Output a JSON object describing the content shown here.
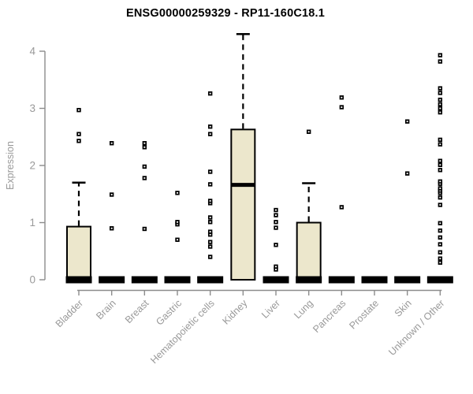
{
  "chart_data": {
    "type": "boxplot",
    "title": "ENSG00000259329 - RP11-160C18.1",
    "ylabel": "Expression",
    "xlabel": "",
    "yticks": [
      0,
      1,
      2,
      3,
      4
    ],
    "ylim": [
      0,
      4.35
    ],
    "grid": false,
    "legend": "none",
    "x_label_rotation_deg": 45,
    "colors": {
      "box_fill": "#ECE7CC",
      "box_stroke": "#000000",
      "median": "#000000",
      "outlier": "#000000",
      "axis_line": "#8C8C8C",
      "tick_text": "#999999",
      "title_text": "#000000",
      "background": "#FFFFFF"
    },
    "categories": [
      {
        "label": "Bladder",
        "box": {
          "low": 0,
          "q1": 0,
          "median": 0,
          "q3": 0.93,
          "high": 1.7
        },
        "outliers": [
          2.43,
          2.55,
          2.97
        ]
      },
      {
        "label": "Brain",
        "box": {
          "low": 0,
          "q1": 0,
          "median": 0,
          "q3": 0,
          "high": 0
        },
        "outliers": [
          0.9,
          1.49,
          2.39
        ]
      },
      {
        "label": "Breast",
        "box": {
          "low": 0,
          "q1": 0,
          "median": 0,
          "q3": 0,
          "high": 0
        },
        "outliers": [
          0.89,
          1.78,
          1.98,
          2.32,
          2.39
        ]
      },
      {
        "label": "Gastric",
        "box": {
          "low": 0,
          "q1": 0,
          "median": 0,
          "q3": 0,
          "high": 0
        },
        "outliers": [
          0.7,
          0.97,
          1.01,
          1.52
        ]
      },
      {
        "label": "Hematopoietic cells",
        "box": {
          "low": 0,
          "q1": 0,
          "median": 0,
          "q3": 0,
          "high": 0
        },
        "outliers": [
          0.4,
          0.58,
          0.66,
          0.79,
          0.84,
          1.01,
          1.09,
          1.34,
          1.38,
          1.67,
          1.89,
          2.55,
          2.68,
          3.26
        ]
      },
      {
        "label": "Kidney",
        "box": {
          "low": 0,
          "q1": 0,
          "median": 1.66,
          "q3": 2.63,
          "high": 4.3
        },
        "outliers": []
      },
      {
        "label": "Liver",
        "box": {
          "low": 0,
          "q1": 0,
          "median": 0,
          "q3": 0,
          "high": 0
        },
        "outliers": [
          0.18,
          0.23,
          0.61,
          0.91,
          1.01,
          1.13,
          1.22
        ]
      },
      {
        "label": "Lung",
        "box": {
          "low": 0,
          "q1": 0,
          "median": 0,
          "q3": 1.0,
          "high": 1.69
        },
        "outliers": [
          2.59
        ]
      },
      {
        "label": "Pancreas",
        "box": {
          "low": 0,
          "q1": 0,
          "median": 0,
          "q3": 0,
          "high": 0
        },
        "outliers": [
          1.27,
          3.02,
          3.19
        ]
      },
      {
        "label": "Prostate",
        "box": {
          "low": 0,
          "q1": 0,
          "median": 0,
          "q3": 0,
          "high": 0
        },
        "outliers": []
      },
      {
        "label": "Skin",
        "box": {
          "low": 0,
          "q1": 0,
          "median": 0,
          "q3": 0,
          "high": 0
        },
        "outliers": [
          1.86,
          2.77
        ]
      },
      {
        "label": "Unknown / Other",
        "box": {
          "low": 0,
          "q1": 0,
          "median": 0,
          "q3": 0,
          "high": 0
        },
        "outliers": [
          0.3,
          0.37,
          0.48,
          0.62,
          0.74,
          0.86,
          0.99,
          1.31,
          1.44,
          1.52,
          1.56,
          1.6,
          1.68,
          1.72,
          1.92,
          2.01,
          2.08,
          2.37,
          2.45,
          2.93,
          3.0,
          3.07,
          3.15,
          3.27,
          3.35,
          3.82,
          3.93
        ]
      }
    ]
  }
}
